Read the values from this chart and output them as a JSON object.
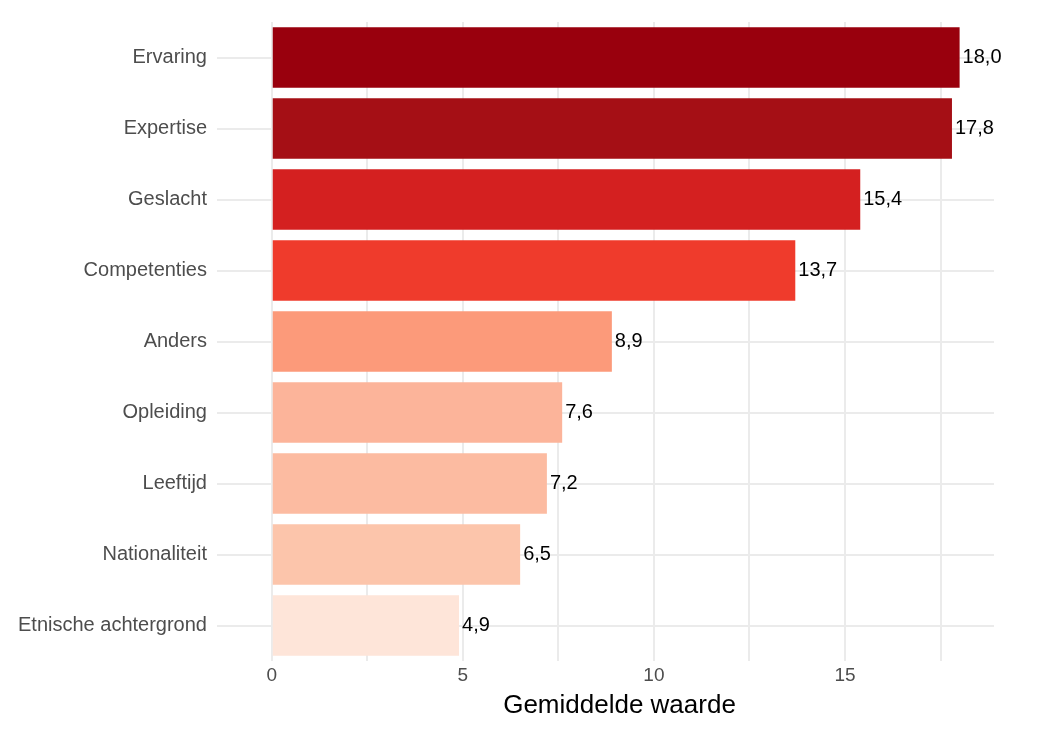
{
  "chart_data": {
    "type": "bar",
    "orientation": "horizontal",
    "xlabel": "Gemiddelde waarde",
    "categories": [
      "Ervaring",
      "Expertise",
      "Geslacht",
      "Competenties",
      "Anders",
      "Opleiding",
      "Leeftijd",
      "Nationaliteit",
      "Etnische achtergrond"
    ],
    "values": [
      18.0,
      17.8,
      15.4,
      13.7,
      8.9,
      7.6,
      7.2,
      6.5,
      4.9
    ],
    "colors": [
      "#99000d",
      "#a50f15",
      "#d42020",
      "#ef3b2c",
      "#fc9a7a",
      "#fcb49a",
      "#fcbba1",
      "#fcc5ab",
      "#fee5d9"
    ],
    "value_labels": [
      "18,0",
      "17,8",
      "15,4",
      "13,7",
      "8,9",
      "7,6",
      "7,2",
      "6,5",
      "4,9"
    ],
    "xlim": [
      -0.7,
      18.9
    ],
    "xticks": [
      0,
      {
        "value": 2.5,
        "label": null
      },
      5,
      {
        "value": 7.5,
        "label": null
      },
      10,
      {
        "value": 12.5,
        "label": null
      },
      15,
      {
        "value": 17.5,
        "label": null
      }
    ],
    "grid": true,
    "legend": false
  }
}
